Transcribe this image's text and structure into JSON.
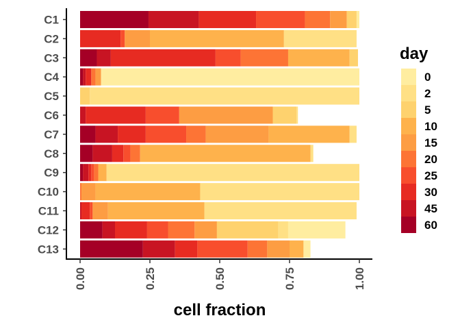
{
  "chart_data": {
    "type": "bar",
    "orientation": "horizontal",
    "stacked": true,
    "xlabel": "cell fraction",
    "ylabel": "",
    "xlim": [
      0,
      1
    ],
    "xticks": [
      "0.00",
      "0.25",
      "0.50",
      "0.75",
      "1.00"
    ],
    "grid": false,
    "legend_position": "right",
    "legend_title": "day",
    "categories": [
      "C1",
      "C2",
      "C3",
      "C4",
      "C5",
      "C6",
      "C7",
      "C8",
      "C9",
      "C10",
      "C11",
      "C12",
      "C13"
    ],
    "series": [
      {
        "name": "0",
        "color": "#ffeda0",
        "values": [
          0.01,
          0.0,
          0.0,
          0.925,
          0.0,
          0.0,
          0.0,
          0.0,
          0.0,
          0.0,
          0.0,
          0.205,
          0.025
        ]
      },
      {
        "name": "2",
        "color": "#ffe085",
        "values": [
          0.0,
          0.26,
          0.0,
          0.0,
          0.965,
          0.005,
          0.025,
          0.01,
          0.905,
          0.57,
          0.545,
          0.035,
          0.0
        ]
      },
      {
        "name": "5",
        "color": "#fed26e",
        "values": [
          0.035,
          0.0,
          0.03,
          0.0,
          0.035,
          0.085,
          0.0,
          0.0,
          0.0,
          0.0,
          0.0,
          0.22,
          0.0
        ]
      },
      {
        "name": "10",
        "color": "#feb24c",
        "values": [
          0.0,
          0.48,
          0.22,
          0.0,
          0.0,
          0.0,
          0.29,
          0.61,
          0.03,
          0.375,
          0.345,
          0.0,
          0.05
        ]
      },
      {
        "name": "15",
        "color": "#fd9d43",
        "values": [
          0.06,
          0.09,
          0.0,
          0.02,
          0.0,
          0.335,
          0.225,
          0.0,
          0.0,
          0.05,
          0.055,
          0.08,
          0.08
        ]
      },
      {
        "name": "20",
        "color": "#fd7435",
        "values": [
          0.09,
          0.0,
          0.17,
          0.015,
          0.0,
          0.0,
          0.07,
          0.035,
          0.015,
          0.005,
          0.0,
          0.095,
          0.07
        ]
      },
      {
        "name": "25",
        "color": "#f84e2d",
        "values": [
          0.175,
          0.015,
          0.09,
          0.0,
          0.0,
          0.12,
          0.145,
          0.025,
          0.01,
          0.0,
          0.01,
          0.075,
          0.18
        ]
      },
      {
        "name": "30",
        "color": "#e72b22",
        "values": [
          0.205,
          0.145,
          0.375,
          0.02,
          0.0,
          0.215,
          0.1,
          0.04,
          0.01,
          0.0,
          0.03,
          0.115,
          0.08
        ]
      },
      {
        "name": "45",
        "color": "#c81423",
        "values": [
          0.18,
          0.0,
          0.05,
          0.01,
          0.0,
          0.02,
          0.08,
          0.07,
          0.02,
          0.0,
          0.005,
          0.045,
          0.115
        ]
      },
      {
        "name": "60",
        "color": "#a50026",
        "values": [
          0.245,
          0.0,
          0.06,
          0.01,
          0.0,
          0.0,
          0.055,
          0.045,
          0.01,
          0.0,
          0.0,
          0.08,
          0.225
        ]
      }
    ]
  }
}
